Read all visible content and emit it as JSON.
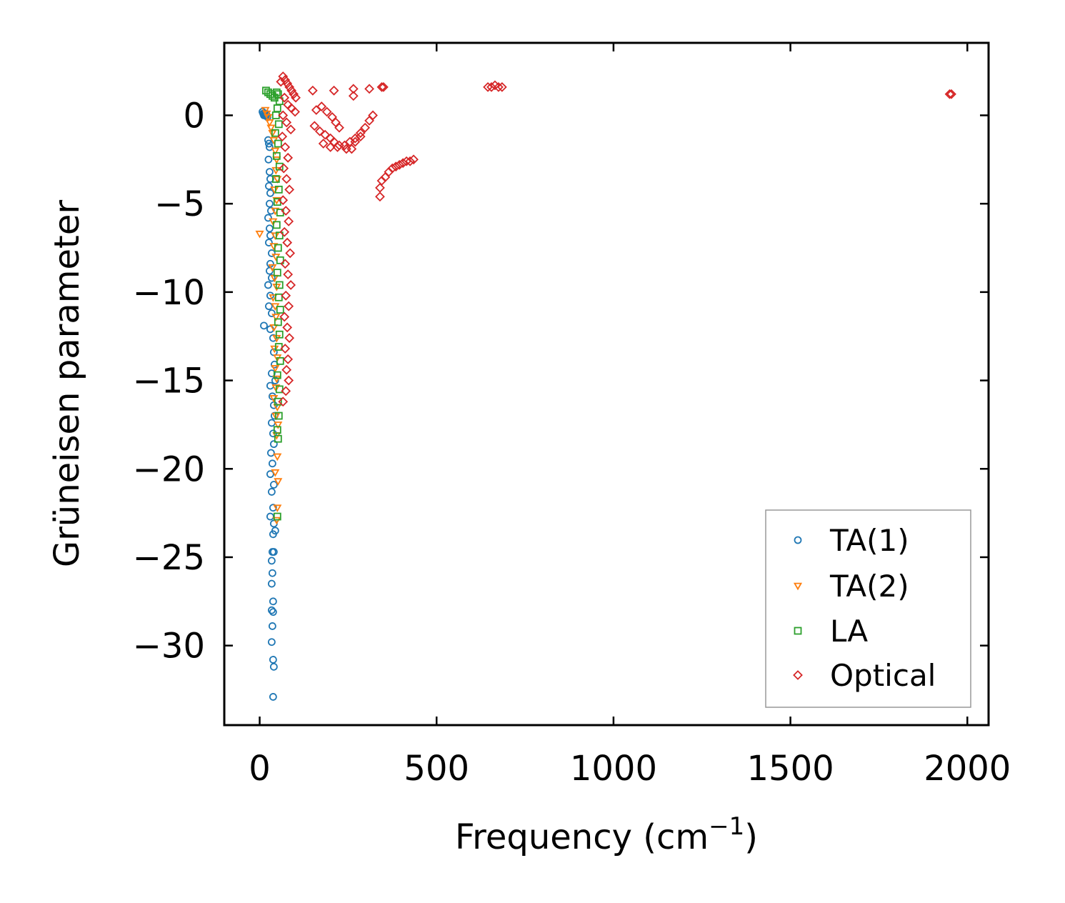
{
  "chart_data": {
    "type": "scatter",
    "xlabel": "Frequency (cm",
    "xlabel_sup": "−1",
    "xlabel_end": ")",
    "ylabel": "Grüneisen parameter",
    "xlim": [
      -100,
      2060
    ],
    "ylim": [
      -34.5,
      4.1
    ],
    "xticks": [
      0,
      500,
      1000,
      1500,
      2000
    ],
    "xtick_labels": [
      "0",
      "500",
      "1000",
      "1500",
      "2000"
    ],
    "yticks": [
      0,
      -5,
      -10,
      -15,
      -20,
      -25,
      -30
    ],
    "ytick_labels": [
      "0",
      "−5",
      "−10",
      "−15",
      "−20",
      "−25",
      "−30"
    ],
    "legend_position": "lower-right",
    "series": [
      {
        "name": "TA(1)",
        "marker": "circle",
        "color": "#1f77b4",
        "points": [
          [
            8,
            0.2
          ],
          [
            10,
            0.1
          ],
          [
            12,
            0.0
          ],
          [
            14,
            0.1
          ],
          [
            16,
            0.0
          ],
          [
            18,
            0.1
          ],
          [
            20,
            0.0
          ],
          [
            22,
            -0.1
          ],
          [
            24,
            -1.4
          ],
          [
            26,
            -1.6
          ],
          [
            28,
            -1.8
          ],
          [
            25,
            -2.5
          ],
          [
            28,
            -3.2
          ],
          [
            30,
            -3.6
          ],
          [
            26,
            -4.0
          ],
          [
            30,
            -4.4
          ],
          [
            28,
            -5.0
          ],
          [
            32,
            -5.4
          ],
          [
            24,
            -5.8
          ],
          [
            28,
            -6.4
          ],
          [
            30,
            -6.8
          ],
          [
            26,
            -7.2
          ],
          [
            34,
            -7.8
          ],
          [
            30,
            -8.4
          ],
          [
            28,
            -8.8
          ],
          [
            34,
            -9.2
          ],
          [
            24,
            -9.6
          ],
          [
            30,
            -10.2
          ],
          [
            26,
            -10.8
          ],
          [
            34,
            -11.2
          ],
          [
            12,
            -11.9
          ],
          [
            30,
            -12.1
          ],
          [
            38,
            -12.6
          ],
          [
            40,
            -13.4
          ],
          [
            42,
            -14.1
          ],
          [
            34,
            -14.6
          ],
          [
            44,
            -15.0
          ],
          [
            30,
            -15.3
          ],
          [
            36,
            -15.9
          ],
          [
            40,
            -16.4
          ],
          [
            42,
            -17.0
          ],
          [
            34,
            -17.4
          ],
          [
            38,
            -18.0
          ],
          [
            40,
            -18.6
          ],
          [
            32,
            -19.1
          ],
          [
            36,
            -19.7
          ],
          [
            30,
            -20.3
          ],
          [
            40,
            -20.9
          ],
          [
            34,
            -21.3
          ],
          [
            38,
            -22.2
          ],
          [
            30,
            -22.7
          ],
          [
            40,
            -23.1
          ],
          [
            44,
            -23.5
          ],
          [
            38,
            -23.7
          ],
          [
            36,
            -24.7
          ],
          [
            40,
            -24.7
          ],
          [
            34,
            -25.2
          ],
          [
            36,
            -25.9
          ],
          [
            34,
            -26.5
          ],
          [
            38,
            -27.5
          ],
          [
            34,
            -28.0
          ],
          [
            38,
            -28.1
          ],
          [
            36,
            -28.9
          ],
          [
            34,
            -29.8
          ],
          [
            38,
            -30.8
          ],
          [
            40,
            -31.2
          ],
          [
            38,
            -32.9
          ]
        ]
      },
      {
        "name": "TA(2)",
        "marker": "triangle-down",
        "color": "#ff7f0e",
        "points": [
          [
            16,
            0.3
          ],
          [
            20,
            0.1
          ],
          [
            24,
            -0.1
          ],
          [
            28,
            -0.4
          ],
          [
            32,
            -0.7
          ],
          [
            36,
            -1.0
          ],
          [
            40,
            -1.4
          ],
          [
            44,
            -2.0
          ],
          [
            48,
            -2.5
          ],
          [
            46,
            -3.1
          ],
          [
            50,
            -3.6
          ],
          [
            42,
            -4.2
          ],
          [
            48,
            -4.8
          ],
          [
            44,
            -5.4
          ],
          [
            38,
            -6.0
          ],
          [
            0,
            -6.7
          ],
          [
            44,
            -6.8
          ],
          [
            40,
            -7.4
          ],
          [
            46,
            -8.0
          ],
          [
            36,
            -8.6
          ],
          [
            42,
            -9.2
          ],
          [
            48,
            -9.7
          ],
          [
            38,
            -10.3
          ],
          [
            44,
            -10.8
          ],
          [
            46,
            -11.4
          ],
          [
            40,
            -12.0
          ],
          [
            48,
            -12.6
          ],
          [
            42,
            -13.2
          ],
          [
            50,
            -13.7
          ],
          [
            44,
            -14.3
          ],
          [
            48,
            -14.9
          ],
          [
            46,
            -15.4
          ],
          [
            40,
            -16.0
          ],
          [
            50,
            -16.5
          ],
          [
            46,
            -17.0
          ],
          [
            52,
            -17.5
          ],
          [
            48,
            -18.1
          ],
          [
            50,
            -19.3
          ],
          [
            44,
            -20.2
          ],
          [
            52,
            -20.7
          ],
          [
            50,
            -22.2
          ],
          [
            48,
            -22.9
          ]
        ]
      },
      {
        "name": "LA",
        "marker": "square",
        "color": "#2ca02c",
        "points": [
          [
            18,
            1.4
          ],
          [
            24,
            1.3
          ],
          [
            30,
            1.2
          ],
          [
            36,
            1.1
          ],
          [
            42,
            1.0
          ],
          [
            48,
            1.3
          ],
          [
            52,
            1.2
          ],
          [
            56,
            0.8
          ],
          [
            50,
            0.4
          ],
          [
            46,
            0.0
          ],
          [
            54,
            -0.5
          ],
          [
            44,
            -1.0
          ],
          [
            52,
            -1.6
          ],
          [
            48,
            -2.3
          ],
          [
            56,
            -2.9
          ],
          [
            46,
            -3.6
          ],
          [
            54,
            -4.2
          ],
          [
            50,
            -4.9
          ],
          [
            58,
            -5.5
          ],
          [
            48,
            -6.2
          ],
          [
            56,
            -6.8
          ],
          [
            52,
            -7.5
          ],
          [
            58,
            -8.2
          ],
          [
            50,
            -8.9
          ],
          [
            56,
            -9.6
          ],
          [
            54,
            -10.3
          ],
          [
            58,
            -11.0
          ],
          [
            52,
            -11.7
          ],
          [
            56,
            -12.4
          ],
          [
            54,
            -13.1
          ],
          [
            58,
            -13.9
          ],
          [
            50,
            -14.7
          ],
          [
            56,
            -15.5
          ],
          [
            52,
            -16.2
          ],
          [
            54,
            -17.0
          ],
          [
            50,
            -17.8
          ],
          [
            52,
            -18.3
          ],
          [
            50,
            -22.7
          ]
        ]
      },
      {
        "name": "Optical",
        "marker": "diamond",
        "color": "#d62728",
        "points": [
          [
            60,
            1.9
          ],
          [
            66,
            2.2
          ],
          [
            72,
            2.0
          ],
          [
            78,
            1.8
          ],
          [
            84,
            1.6
          ],
          [
            90,
            1.4
          ],
          [
            96,
            1.2
          ],
          [
            102,
            1.0
          ],
          [
            70,
            1.0
          ],
          [
            80,
            0.6
          ],
          [
            90,
            0.4
          ],
          [
            100,
            0.2
          ],
          [
            66,
            0.0
          ],
          [
            76,
            -0.4
          ],
          [
            88,
            -0.8
          ],
          [
            64,
            -1.2
          ],
          [
            72,
            -1.8
          ],
          [
            80,
            -2.4
          ],
          [
            68,
            -3.0
          ],
          [
            76,
            -3.6
          ],
          [
            84,
            -4.2
          ],
          [
            66,
            -4.8
          ],
          [
            74,
            -5.4
          ],
          [
            82,
            -6.0
          ],
          [
            70,
            -6.6
          ],
          [
            78,
            -7.2
          ],
          [
            86,
            -7.8
          ],
          [
            72,
            -8.4
          ],
          [
            80,
            -9.0
          ],
          [
            88,
            -9.6
          ],
          [
            74,
            -10.2
          ],
          [
            82,
            -10.8
          ],
          [
            70,
            -11.4
          ],
          [
            78,
            -12.0
          ],
          [
            84,
            -12.6
          ],
          [
            72,
            -13.2
          ],
          [
            80,
            -13.8
          ],
          [
            76,
            -14.4
          ],
          [
            82,
            -15.0
          ],
          [
            74,
            -15.6
          ],
          [
            66,
            -16.2
          ],
          [
            150,
            1.4
          ],
          [
            210,
            1.4
          ],
          [
            265,
            1.5
          ],
          [
            265,
            1.1
          ],
          [
            310,
            1.5
          ],
          [
            345,
            1.6
          ],
          [
            350,
            1.6
          ],
          [
            160,
            0.3
          ],
          [
            175,
            0.5
          ],
          [
            190,
            0.2
          ],
          [
            205,
            -0.1
          ],
          [
            215,
            -0.4
          ],
          [
            225,
            -0.7
          ],
          [
            155,
            -0.6
          ],
          [
            170,
            -0.9
          ],
          [
            185,
            -1.1
          ],
          [
            200,
            -1.3
          ],
          [
            210,
            -1.5
          ],
          [
            225,
            -1.7
          ],
          [
            240,
            -1.7
          ],
          [
            255,
            -1.5
          ],
          [
            270,
            -1.3
          ],
          [
            285,
            -1.0
          ],
          [
            298,
            -0.7
          ],
          [
            310,
            -0.3
          ],
          [
            320,
            0.0
          ],
          [
            180,
            -1.6
          ],
          [
            200,
            -1.8
          ],
          [
            220,
            -1.8
          ],
          [
            245,
            -1.9
          ],
          [
            260,
            -1.9
          ],
          [
            270,
            -1.5
          ],
          [
            285,
            -1.2
          ],
          [
            340,
            -4.6
          ],
          [
            340,
            -4.1
          ],
          [
            345,
            -3.7
          ],
          [
            355,
            -3.5
          ],
          [
            365,
            -3.2
          ],
          [
            375,
            -3.0
          ],
          [
            385,
            -2.9
          ],
          [
            395,
            -2.8
          ],
          [
            405,
            -2.7
          ],
          [
            415,
            -2.6
          ],
          [
            425,
            -2.6
          ],
          [
            435,
            -2.5
          ],
          [
            645,
            1.6
          ],
          [
            655,
            1.6
          ],
          [
            665,
            1.7
          ],
          [
            675,
            1.6
          ],
          [
            685,
            1.6
          ],
          [
            1950,
            1.2
          ],
          [
            1955,
            1.2
          ]
        ]
      }
    ]
  }
}
